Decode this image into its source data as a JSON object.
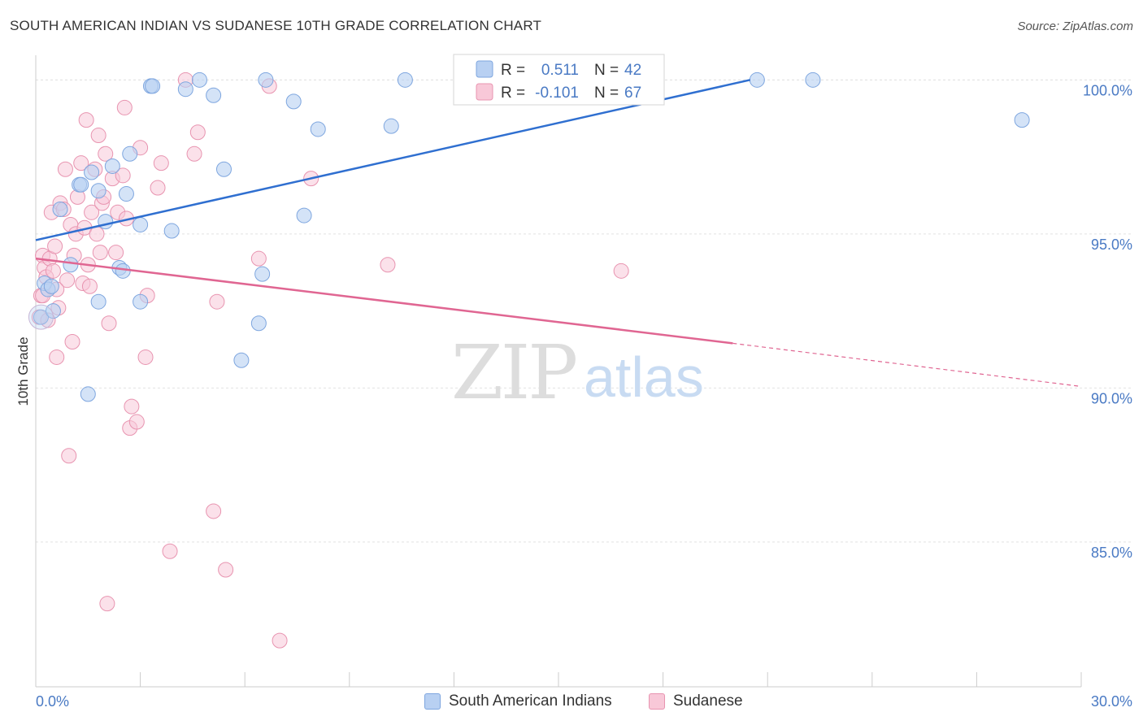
{
  "title": "SOUTH AMERICAN INDIAN VS SUDANESE 10TH GRADE CORRELATION CHART",
  "source": "Source: ZipAtlas.com",
  "watermark": {
    "zip": "ZIP",
    "atlas": "atlas"
  },
  "colors": {
    "blue": "#4a7ac4",
    "blue_fill": "#b8d0f2",
    "blue_line": "#2f6fd0",
    "pink_fill": "#f8c8d8",
    "pink_stroke": "#e894b0",
    "pink_line": "#e06692"
  },
  "legend": {
    "r_label": "R =",
    "n_label": "N =",
    "rows": [
      {
        "r": "0.511",
        "n": "42"
      },
      {
        "r": "-0.101",
        "n": "67"
      }
    ]
  },
  "bottom_legend": [
    "South American Indians",
    "Sudanese"
  ],
  "chart_data": {
    "type": "scatter",
    "title": "SOUTH AMERICAN INDIAN VS SUDANESE 10TH GRADE CORRELATION CHART",
    "xlabel": "",
    "ylabel": "10th Grade",
    "xlim": [
      0,
      30
    ],
    "ylim": [
      80.3,
      100.8
    ],
    "x_tick_labels": [
      "0.0%",
      "30.0%"
    ],
    "y_ticks": [
      85,
      90,
      95,
      100
    ],
    "y_tick_labels": [
      "85.0%",
      "90.0%",
      "95.0%",
      "100.0%"
    ],
    "grid": true,
    "series": [
      {
        "name": "South American Indians",
        "r": 0.511,
        "n": 42,
        "trend": {
          "x": [
            0,
            20.5
          ],
          "y": [
            94.8,
            100.0
          ]
        },
        "points": [
          [
            0.15,
            92.3
          ],
          [
            0.25,
            93.4
          ],
          [
            0.35,
            93.2
          ],
          [
            0.45,
            93.3
          ],
          [
            0.5,
            92.5
          ],
          [
            0.7,
            95.8
          ],
          [
            1.0,
            94.0
          ],
          [
            1.25,
            96.6
          ],
          [
            1.3,
            96.6
          ],
          [
            1.5,
            89.8
          ],
          [
            1.6,
            97.0
          ],
          [
            1.8,
            96.4
          ],
          [
            1.8,
            92.8
          ],
          [
            2.0,
            95.4
          ],
          [
            2.2,
            97.2
          ],
          [
            2.4,
            93.9
          ],
          [
            2.5,
            93.8
          ],
          [
            2.6,
            96.3
          ],
          [
            2.7,
            97.6
          ],
          [
            3.0,
            92.8
          ],
          [
            3.0,
            95.3
          ],
          [
            3.3,
            99.8
          ],
          [
            3.35,
            99.8
          ],
          [
            3.9,
            95.1
          ],
          [
            4.3,
            99.7
          ],
          [
            4.7,
            100.0
          ],
          [
            5.1,
            99.5
          ],
          [
            5.4,
            97.1
          ],
          [
            5.9,
            90.9
          ],
          [
            6.4,
            92.1
          ],
          [
            6.5,
            93.7
          ],
          [
            6.6,
            100.0
          ],
          [
            7.4,
            99.3
          ],
          [
            7.7,
            95.6
          ],
          [
            8.1,
            98.4
          ],
          [
            10.2,
            98.5
          ],
          [
            10.6,
            100.0
          ],
          [
            13.6,
            100.0
          ],
          [
            14.0,
            100.0
          ],
          [
            20.7,
            100.0
          ],
          [
            22.3,
            100.0
          ],
          [
            28.3,
            98.7
          ]
        ]
      },
      {
        "name": "Sudanese",
        "r": -0.101,
        "n": 67,
        "trend_solid": {
          "x": [
            0,
            20.0
          ],
          "y": [
            94.2,
            91.45
          ]
        },
        "trend_dashed": {
          "x": [
            20.0,
            30.0
          ],
          "y": [
            91.45,
            90.05
          ]
        },
        "points": [
          [
            0.1,
            92.3
          ],
          [
            0.15,
            93.0
          ],
          [
            0.2,
            94.3
          ],
          [
            0.25,
            93.9
          ],
          [
            0.3,
            93.6
          ],
          [
            0.35,
            92.2
          ],
          [
            0.4,
            94.2
          ],
          [
            0.45,
            95.7
          ],
          [
            0.5,
            93.8
          ],
          [
            0.55,
            94.6
          ],
          [
            0.6,
            91.0
          ],
          [
            0.65,
            92.6
          ],
          [
            0.7,
            96.0
          ],
          [
            0.8,
            95.8
          ],
          [
            0.85,
            97.1
          ],
          [
            0.9,
            93.5
          ],
          [
            0.95,
            87.8
          ],
          [
            1.0,
            95.3
          ],
          [
            1.05,
            91.5
          ],
          [
            1.1,
            94.3
          ],
          [
            1.15,
            95.0
          ],
          [
            1.2,
            96.2
          ],
          [
            1.3,
            97.3
          ],
          [
            1.35,
            93.4
          ],
          [
            1.4,
            95.2
          ],
          [
            1.45,
            98.7
          ],
          [
            1.5,
            94.0
          ],
          [
            1.55,
            93.3
          ],
          [
            1.6,
            95.7
          ],
          [
            1.7,
            97.1
          ],
          [
            1.75,
            95.0
          ],
          [
            1.8,
            98.2
          ],
          [
            1.85,
            94.4
          ],
          [
            1.9,
            96.0
          ],
          [
            2.0,
            97.6
          ],
          [
            2.05,
            83.0
          ],
          [
            2.1,
            92.1
          ],
          [
            2.2,
            96.8
          ],
          [
            2.3,
            94.4
          ],
          [
            2.35,
            95.7
          ],
          [
            2.5,
            96.9
          ],
          [
            2.55,
            99.1
          ],
          [
            2.7,
            88.7
          ],
          [
            2.75,
            89.4
          ],
          [
            2.9,
            88.9
          ],
          [
            3.0,
            97.8
          ],
          [
            3.15,
            91.0
          ],
          [
            3.2,
            93.0
          ],
          [
            3.5,
            96.5
          ],
          [
            3.6,
            97.3
          ],
          [
            3.85,
            84.7
          ],
          [
            4.3,
            100.0
          ],
          [
            4.55,
            97.6
          ],
          [
            4.65,
            98.3
          ],
          [
            5.1,
            86.0
          ],
          [
            5.2,
            92.8
          ],
          [
            5.45,
            84.1
          ],
          [
            6.4,
            94.2
          ],
          [
            6.7,
            99.8
          ],
          [
            7.0,
            81.8
          ],
          [
            7.9,
            96.8
          ],
          [
            10.1,
            94.0
          ],
          [
            16.8,
            93.8
          ],
          [
            0.2,
            93.0
          ],
          [
            0.6,
            93.2
          ],
          [
            1.95,
            96.2
          ],
          [
            2.6,
            95.5
          ]
        ]
      }
    ]
  }
}
